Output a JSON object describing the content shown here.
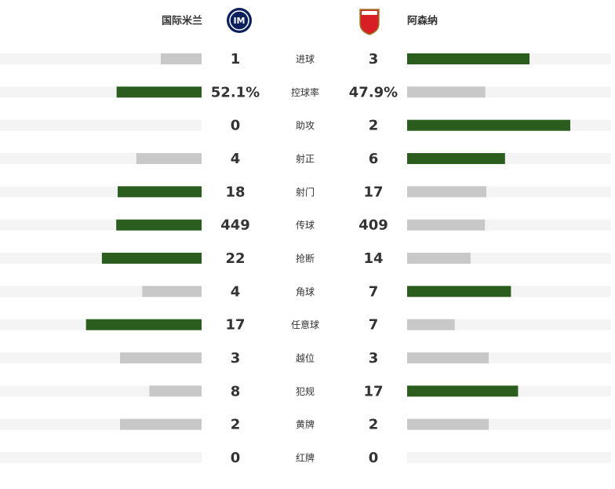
{
  "header": {
    "home_team": "国际米兰",
    "away_team": "阿森纳"
  },
  "colors": {
    "leader": "#2b5d1f",
    "trailer": "#c8c8c8",
    "track": "#f4f4f4"
  },
  "stats": [
    {
      "name": "进球",
      "home": 1,
      "away": 3
    },
    {
      "name": "控球率",
      "home": 52.1,
      "away": 47.9,
      "home_label": "52.1%",
      "away_label": "47.9%"
    },
    {
      "name": "助攻",
      "home": 0,
      "away": 2
    },
    {
      "name": "射正",
      "home": 4,
      "away": 6
    },
    {
      "name": "射门",
      "home": 18,
      "away": 17
    },
    {
      "name": "传球",
      "home": 449,
      "away": 409
    },
    {
      "name": "抢断",
      "home": 22,
      "away": 14
    },
    {
      "name": "角球",
      "home": 4,
      "away": 7
    },
    {
      "name": "任意球",
      "home": 17,
      "away": 7
    },
    {
      "name": "越位",
      "home": 3,
      "away": 3
    },
    {
      "name": "犯规",
      "home": 8,
      "away": 17
    },
    {
      "name": "黄牌",
      "home": 2,
      "away": 2
    },
    {
      "name": "红牌",
      "home": 0,
      "away": 0
    }
  ]
}
